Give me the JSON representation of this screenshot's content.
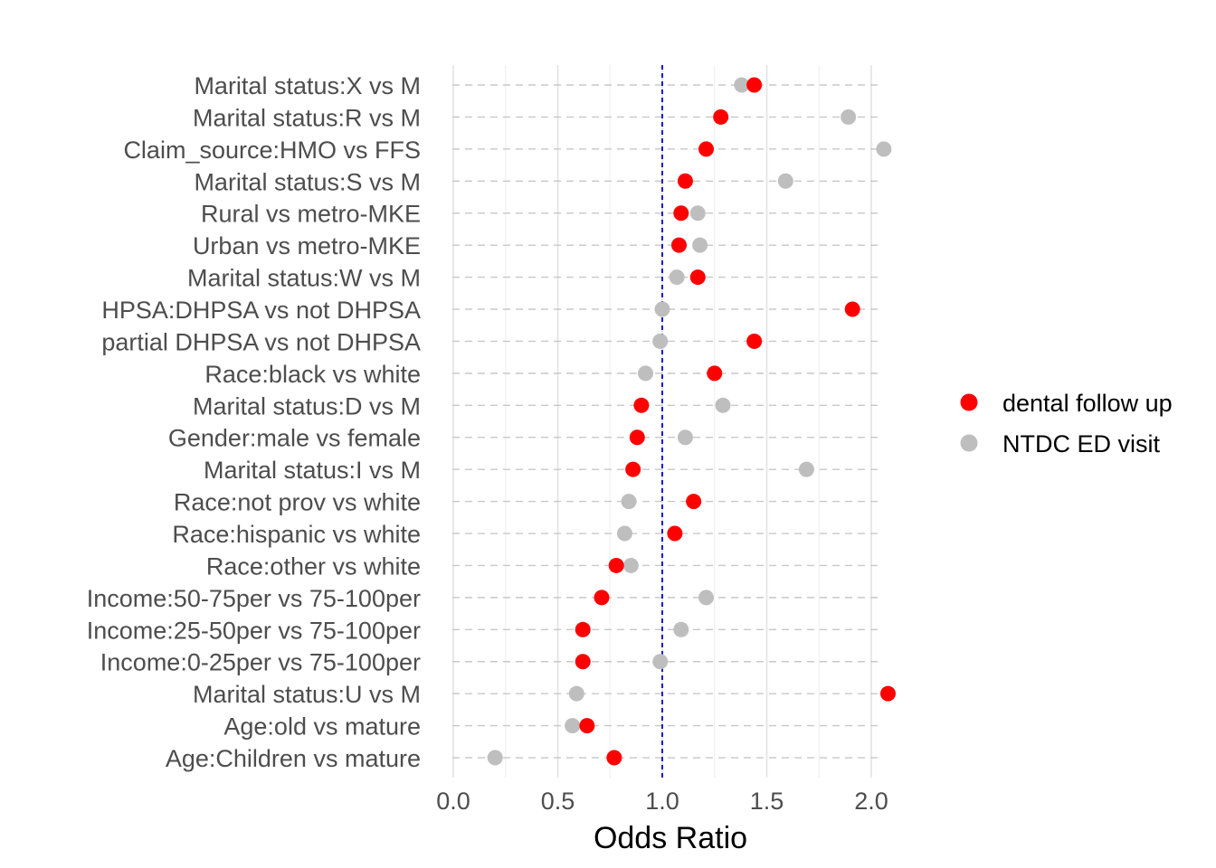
{
  "chart_data": {
    "type": "scatter",
    "title": "",
    "xlabel": "Odds Ratio",
    "ylabel": "",
    "xlim": [
      0.0,
      2.08
    ],
    "x_ticks": [
      "0.0",
      "0.5",
      "1.0",
      "1.5",
      "2.0"
    ],
    "x_tick_values": [
      0.0,
      0.5,
      1.0,
      1.5,
      2.0
    ],
    "reference_line": 1.0,
    "reference_line_color": "#0000cc",
    "grid": true,
    "legend_position": "right",
    "categories": [
      "Marital status:X vs M",
      "Marital status:R vs M",
      "Claim_source:HMO vs FFS",
      "Marital status:S vs M",
      "Rural vs metro-MKE",
      "Urban vs metro-MKE",
      "Marital status:W vs M",
      "HPSA:DHPSA vs not DHPSA",
      "partial DHPSA vs not DHPSA",
      "Race:black vs white",
      "Marital status:D vs M",
      "Gender:male vs female",
      "Marital status:I vs M",
      "Race:not prov vs white",
      "Race:hispanic vs white",
      "Race:other vs white",
      "Income:50-75per vs 75-100per",
      "Income:25-50per vs 75-100per",
      "Income:0-25per vs 75-100per",
      "Marital status:U vs M",
      "Age:old vs mature",
      "Age:Children vs mature"
    ],
    "series": [
      {
        "name": "NTDC ED visit",
        "color": "#bebebe",
        "values": [
          1.38,
          1.89,
          2.06,
          1.59,
          1.17,
          1.18,
          1.07,
          1.0,
          0.99,
          0.92,
          1.29,
          1.11,
          1.69,
          0.84,
          0.82,
          0.85,
          1.21,
          1.09,
          0.99,
          0.59,
          0.57,
          0.2
        ]
      },
      {
        "name": "dental follow up",
        "color": "#ff0000",
        "values": [
          1.44,
          1.28,
          1.21,
          1.11,
          1.09,
          1.08,
          1.17,
          1.91,
          1.44,
          1.25,
          0.9,
          0.88,
          0.86,
          1.15,
          1.06,
          0.78,
          0.71,
          0.62,
          0.62,
          2.08,
          0.64,
          0.77
        ]
      }
    ],
    "legend": [
      "dental follow up",
      "NTDC ED visit"
    ]
  }
}
